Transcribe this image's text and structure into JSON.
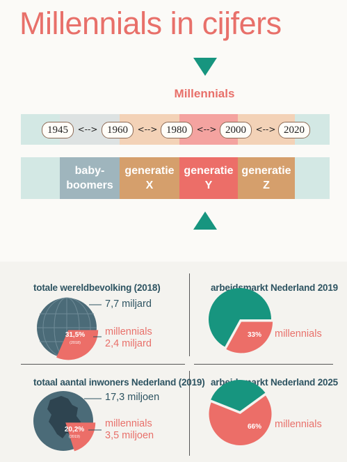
{
  "title": "Millennials in cijfers",
  "timeline": {
    "highlight_label": "Millennials",
    "years": [
      "1945",
      "1960",
      "1980",
      "2000",
      "2020"
    ],
    "arrow": "<-->",
    "generations": [
      {
        "label": "baby-\nboomers",
        "color": "#9fb5bd"
      },
      {
        "label": "generatie\nX",
        "color": "#d59f6c"
      },
      {
        "label": "generatie\nY",
        "color": "#ec6e68"
      },
      {
        "label": "generatie\nZ",
        "color": "#d59f6c"
      }
    ]
  },
  "panels": {
    "world": {
      "title": "totale wereldbevolking (2018)",
      "total": "7,7 miljard",
      "label": "millennials",
      "value": "2,4 miljard",
      "pct": "31,5%",
      "year": "(2018)",
      "share": 0.315
    },
    "labor2019": {
      "title": "arbeidsmarkt Nederland 2019",
      "label": "millennials",
      "pct": "33%",
      "share": 0.33
    },
    "nl": {
      "title": "totaal aantal inwoners Nederland (2019)",
      "total": "17,3 miljoen",
      "label": "millennials",
      "value": "3,5 miljoen",
      "pct": "20,2%",
      "year": "(2019)",
      "share": 0.202
    },
    "labor2025": {
      "title": "arbeidsmarkt Nederland 2025",
      "label": "millennials",
      "pct": "66%",
      "share": 0.66
    }
  },
  "colors": {
    "teal": "#17957f",
    "navy": "#2d5361",
    "coral": "#e8706a"
  }
}
